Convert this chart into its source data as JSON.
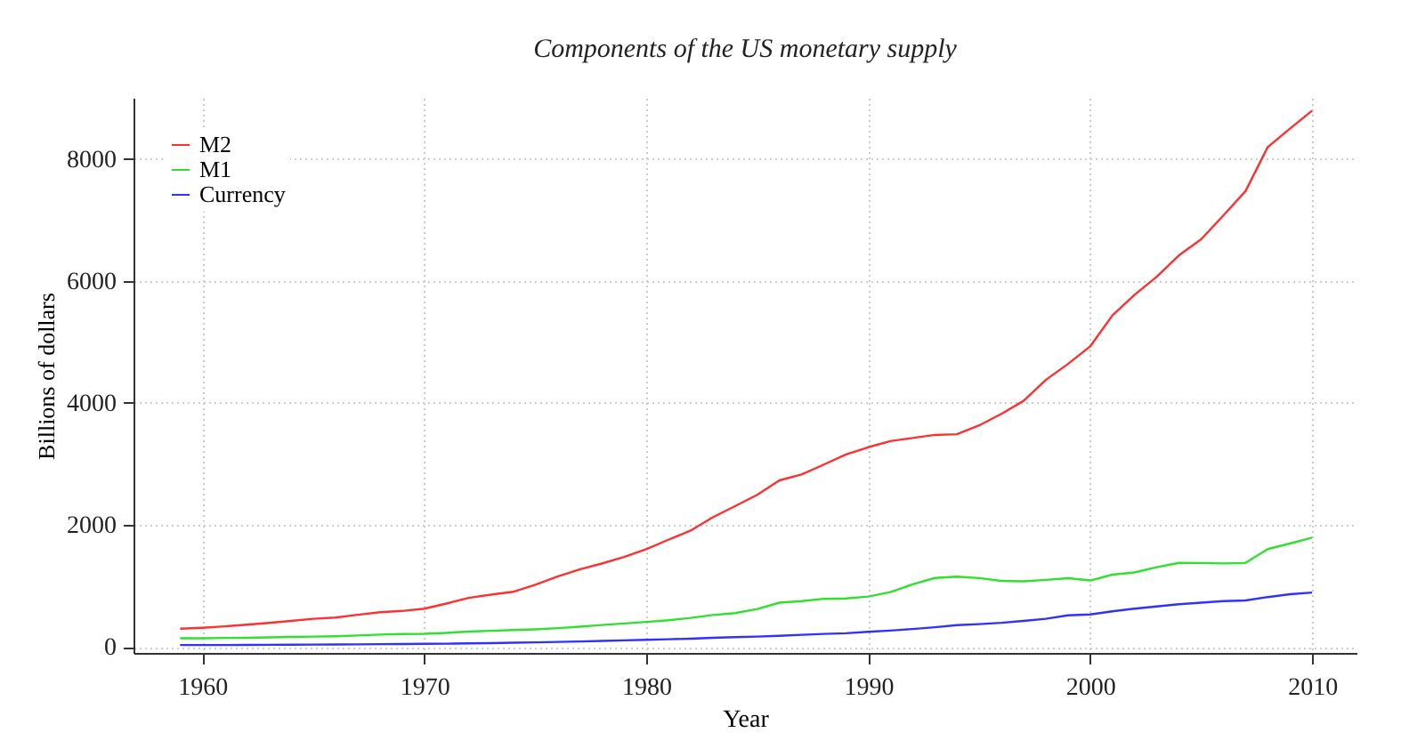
{
  "chart_data": {
    "type": "line",
    "title": "Components of the US monetary supply",
    "xlabel": "Year",
    "ylabel": "Billions of dollars",
    "x": [
      1959,
      1960,
      1961,
      1962,
      1963,
      1964,
      1965,
      1966,
      1967,
      1968,
      1969,
      1970,
      1971,
      1972,
      1973,
      1974,
      1975,
      1976,
      1977,
      1978,
      1979,
      1980,
      1981,
      1982,
      1983,
      1984,
      1985,
      1986,
      1987,
      1988,
      1989,
      1990,
      1991,
      1992,
      1993,
      1994,
      1995,
      1996,
      1997,
      1998,
      1999,
      2000,
      2001,
      2002,
      2003,
      2004,
      2005,
      2006,
      2007,
      2008,
      2009,
      2010
    ],
    "series": [
      {
        "name": "M2",
        "color": "#ff3030",
        "values": [
          297,
          312,
          335,
          362,
          393,
          424,
          459,
          480,
          525,
          567,
          588,
          626,
          710,
          802,
          855,
          902,
          1016,
          1152,
          1270,
          1366,
          1473,
          1600,
          1756,
          1906,
          2124,
          2306,
          2492,
          2729,
          2826,
          2988,
          3153,
          3272,
          3372,
          3424,
          3474,
          3486,
          3630,
          3819,
          4033,
          4375,
          4638,
          4925,
          5433,
          5772,
          6067,
          6418,
          6681,
          7071,
          7471,
          8192,
          8496,
          8790
        ]
      },
      {
        "name": "M1",
        "color": "#30e030",
        "values": [
          141,
          141,
          146,
          149,
          155,
          162,
          168,
          173,
          186,
          201,
          209,
          214,
          229,
          250,
          263,
          275,
          287,
          306,
          331,
          358,
          383,
          408,
          436,
          474,
          521,
          552,
          620,
          724,
          750,
          787,
          794,
          825,
          897,
          1025,
          1129,
          1150,
          1127,
          1081,
          1073,
          1097,
          1124,
          1088,
          1183,
          1220,
          1306,
          1376,
          1375,
          1367,
          1375,
          1603,
          1694,
          1790
        ]
      },
      {
        "name": "Currency",
        "color": "#3030ff",
        "values": [
          29,
          29,
          30,
          31,
          33,
          35,
          37,
          39,
          41,
          44,
          46,
          49,
          52,
          56,
          61,
          67,
          73,
          80,
          88,
          97,
          106,
          116,
          124,
          134,
          148,
          158,
          168,
          181,
          197,
          212,
          222,
          247,
          267,
          292,
          321,
          355,
          372,
          394,
          425,
          460,
          517,
          531,
          581,
          626,
          662,
          699,
          724,
          750,
          760,
          816,
          863,
          890
        ]
      }
    ],
    "xlim": [
      1956.9,
      2012
    ],
    "ylim": [
      -100,
      9000
    ],
    "xticks": [
      1960,
      1970,
      1980,
      1990,
      2000,
      2010
    ],
    "yticks": [
      0,
      2000,
      4000,
      6000,
      8000
    ],
    "grid": true,
    "legend": "top left",
    "line_style": "solid",
    "marker": "none"
  }
}
